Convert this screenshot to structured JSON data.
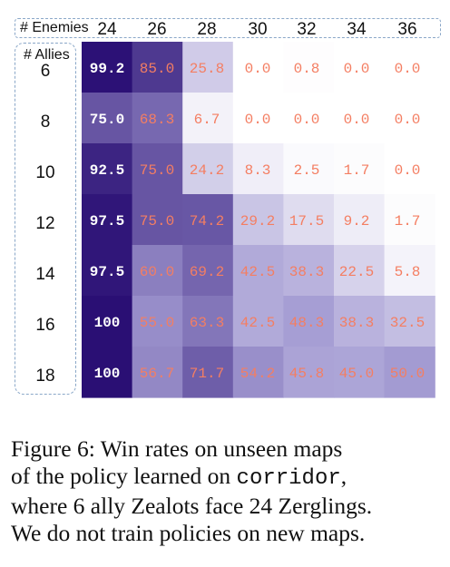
{
  "chart_data": {
    "type": "heatmap",
    "x_title": "# Enemies",
    "y_title": "# Allies",
    "x": [
      24,
      26,
      28,
      30,
      32,
      34,
      36
    ],
    "y": [
      6,
      8,
      10,
      12,
      14,
      16,
      18
    ],
    "values": [
      [
        "99.2",
        "85.0",
        "25.8",
        "0.0",
        "0.8",
        "0.0",
        "0.0"
      ],
      [
        "75.0",
        "68.3",
        "6.7",
        "0.0",
        "0.0",
        "0.0",
        "0.0"
      ],
      [
        "92.5",
        "75.0",
        "24.2",
        "8.3",
        "2.5",
        "1.7",
        "0.0"
      ],
      [
        "97.5",
        "75.0",
        "74.2",
        "29.2",
        "17.5",
        "9.2",
        "1.7"
      ],
      [
        "97.5",
        "60.0",
        "69.2",
        "42.5",
        "38.3",
        "22.5",
        "5.8"
      ],
      [
        "100",
        "55.0",
        "63.3",
        "42.5",
        "48.3",
        "38.3",
        "32.5"
      ],
      [
        "100",
        "56.7",
        "71.7",
        "54.2",
        "45.8",
        "45.0",
        "50.0"
      ]
    ],
    "colors": {
      "low": "#ffffff",
      "high": "#2a0f74",
      "label_light": "#ffffff",
      "label_warm": "#f47e62"
    }
  },
  "caption": {
    "line1": "Figure 6:  Win rates on unseen maps",
    "line2_pre": "of the policy learned on ",
    "line2_code": "corridor",
    "line2_post": ",",
    "line3": "where 6 ally Zealots face 24 Zerglings.",
    "line4": "We do not train policies on new maps."
  }
}
